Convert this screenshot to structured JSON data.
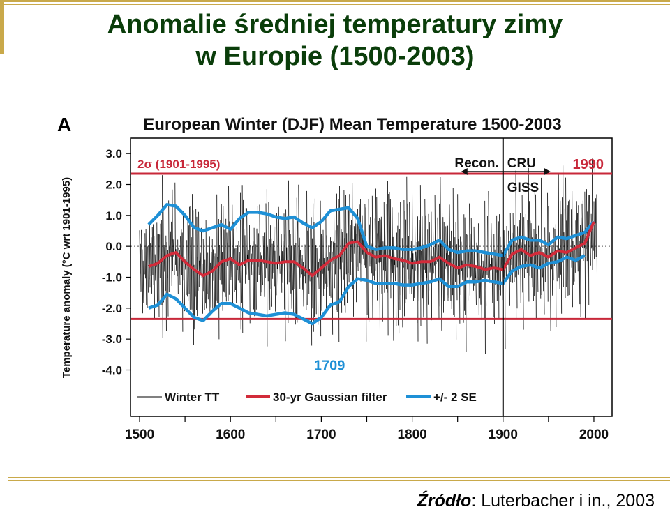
{
  "slide": {
    "title_line1": "Anomalie średniej temperatury zimy",
    "title_line2": "w Europie (1500-2003)",
    "source_label": "Źródło",
    "source_text": ": Luterbacher i in., 2003"
  },
  "colors": {
    "title": "#0a3d0a",
    "accent_gold": "#c9a94a",
    "series_winter": "#000000",
    "series_gaussian": "#d22b3a",
    "series_se": "#1e90d6",
    "sigma_line": "#c8283a",
    "annotation_red": "#c8283a",
    "annotation_blue": "#1e90d6"
  },
  "chart_data": {
    "type": "line",
    "panel_label": "A",
    "title": "European Winter (DJF) Mean Temperature 1500-2003",
    "ylabel": "Temperature anomaly (°C wrt 1901-1995)",
    "xlabel": "",
    "xlim": [
      1490,
      2020
    ],
    "ylim": [
      -5.5,
      3.5
    ],
    "x_ticks": [
      1500,
      1600,
      1700,
      1800,
      1900,
      2000
    ],
    "x_tick_labels": [
      "1500",
      "1600",
      "1700",
      "1800",
      "1900",
      "2000"
    ],
    "y_ticks": [
      3,
      2,
      1,
      0,
      -1,
      -2,
      -3,
      -4
    ],
    "y_tick_labels": [
      "3.0",
      "2.0",
      "1.0",
      "0.0",
      "-1.0",
      "-2.0",
      "-3.0",
      "-4.0"
    ],
    "grid": false,
    "zero_line": "dashed",
    "sigma_band": {
      "label": "2σ (1901-1995)",
      "upper": 2.35,
      "lower": -2.35
    },
    "divider_year": 1900,
    "annotations": [
      {
        "text": "Recon.",
        "x": 1895,
        "y": 2.8
      },
      {
        "text": "CRU",
        "x": 1930,
        "y": 2.8
      },
      {
        "text": "GISS",
        "x": 1930,
        "y": 2.0
      },
      {
        "text": "1990",
        "x": 1990,
        "y": 2.8
      },
      {
        "text": "1709",
        "x": 1709,
        "y": -4.0
      }
    ],
    "legend": {
      "position": "bottom",
      "entries": [
        "Winter TT",
        "30-yr Gaussian filter",
        "+/- 2 SE"
      ]
    },
    "series": [
      {
        "name": "30-yr Gaussian filter",
        "x": [
          1510,
          1520,
          1530,
          1540,
          1550,
          1560,
          1570,
          1580,
          1590,
          1600,
          1610,
          1620,
          1630,
          1640,
          1650,
          1660,
          1670,
          1680,
          1690,
          1700,
          1710,
          1720,
          1730,
          1740,
          1750,
          1760,
          1770,
          1780,
          1790,
          1800,
          1810,
          1820,
          1830,
          1840,
          1850,
          1860,
          1870,
          1880,
          1890,
          1900,
          1910,
          1920,
          1930,
          1940,
          1950,
          1960,
          1970,
          1980,
          1990,
          2000
        ],
        "values": [
          -0.65,
          -0.55,
          -0.3,
          -0.2,
          -0.5,
          -0.75,
          -0.95,
          -0.8,
          -0.5,
          -0.4,
          -0.6,
          -0.45,
          -0.45,
          -0.5,
          -0.55,
          -0.5,
          -0.5,
          -0.7,
          -0.95,
          -0.7,
          -0.45,
          -0.3,
          0.1,
          0.15,
          -0.2,
          -0.35,
          -0.3,
          -0.4,
          -0.45,
          -0.55,
          -0.5,
          -0.5,
          -0.35,
          -0.55,
          -0.7,
          -0.6,
          -0.65,
          -0.75,
          -0.7,
          -0.75,
          -0.25,
          -0.1,
          -0.3,
          -0.2,
          -0.35,
          -0.15,
          -0.2,
          -0.05,
          0.1,
          0.8
        ]
      },
      {
        "name": "+/- 2 SE (upper)",
        "x": [
          1510,
          1520,
          1530,
          1540,
          1550,
          1560,
          1570,
          1580,
          1590,
          1600,
          1610,
          1620,
          1630,
          1640,
          1650,
          1660,
          1670,
          1680,
          1690,
          1700,
          1710,
          1720,
          1730,
          1740,
          1750,
          1760,
          1770,
          1780,
          1790,
          1800,
          1810,
          1820,
          1830,
          1840,
          1850,
          1860,
          1870,
          1880,
          1890,
          1900,
          1910,
          1920,
          1930,
          1940,
          1950,
          1960,
          1970,
          1980,
          1990,
          2000
        ],
        "values": [
          0.7,
          1.0,
          1.35,
          1.3,
          1.0,
          0.6,
          0.5,
          0.6,
          0.7,
          0.55,
          0.9,
          1.1,
          1.1,
          1.05,
          0.95,
          0.9,
          0.95,
          0.75,
          0.6,
          0.8,
          1.15,
          1.2,
          1.25,
          0.9,
          0.0,
          -0.1,
          -0.05,
          -0.05,
          -0.1,
          -0.1,
          -0.05,
          0.05,
          0.2,
          -0.1,
          -0.2,
          -0.15,
          -0.15,
          -0.2,
          -0.25,
          -0.3,
          0.2,
          0.3,
          0.2,
          0.2,
          0.05,
          0.3,
          0.25,
          0.35,
          0.45,
          0.8
        ]
      },
      {
        "name": "+/- 2 SE (lower)",
        "x": [
          1510,
          1520,
          1530,
          1540,
          1550,
          1560,
          1570,
          1580,
          1590,
          1600,
          1610,
          1620,
          1630,
          1640,
          1650,
          1660,
          1670,
          1680,
          1690,
          1700,
          1710,
          1720,
          1730,
          1740,
          1750,
          1760,
          1770,
          1780,
          1790,
          1800,
          1810,
          1820,
          1830,
          1840,
          1850,
          1860,
          1870,
          1880,
          1890,
          1900,
          1910,
          1920,
          1930,
          1940,
          1950,
          1960,
          1970,
          1980,
          1990
        ],
        "values": [
          -2.0,
          -1.9,
          -1.55,
          -1.7,
          -2.0,
          -2.3,
          -2.4,
          -2.1,
          -1.85,
          -1.85,
          -2.0,
          -2.15,
          -2.2,
          -2.25,
          -2.2,
          -2.15,
          -2.2,
          -2.35,
          -2.5,
          -2.3,
          -1.9,
          -1.8,
          -1.3,
          -1.05,
          -1.1,
          -1.2,
          -1.2,
          -1.2,
          -1.25,
          -1.25,
          -1.2,
          -1.15,
          -1.05,
          -1.3,
          -1.3,
          -1.15,
          -1.15,
          -1.1,
          -1.15,
          -1.2,
          -0.8,
          -0.65,
          -0.6,
          -0.7,
          -0.55,
          -0.5,
          -0.35,
          -0.45,
          -0.3
        ]
      }
    ]
  }
}
